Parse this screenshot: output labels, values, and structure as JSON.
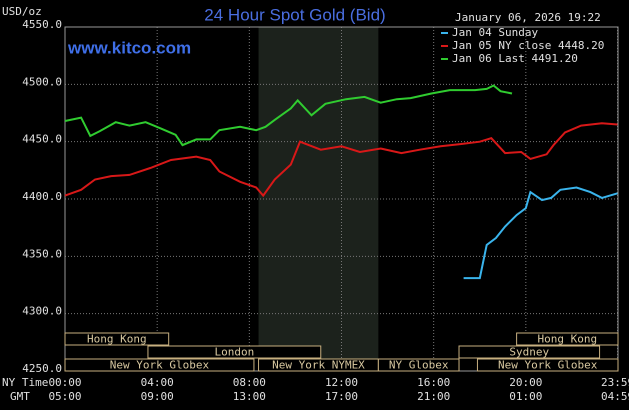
{
  "chart_data": {
    "type": "line",
    "title": "24 Hour Spot Gold (Bid)",
    "unit_label": "USD/oz",
    "timestamp": "January 06, 2026 19:22",
    "site": "www.kitco.com",
    "x_row_labels": [
      "NY Time",
      "GMT"
    ],
    "xlim": [
      0,
      24
    ],
    "ylim": [
      4250,
      4550
    ],
    "xticks": [
      {
        "value": 0,
        "label": "00:00"
      },
      {
        "value": 4,
        "label": "04:00"
      },
      {
        "value": 8,
        "label": "08:00"
      },
      {
        "value": 12,
        "label": "12:00"
      },
      {
        "value": 16,
        "label": "16:00"
      },
      {
        "value": 20,
        "label": "20:00"
      },
      {
        "value": 23.98,
        "label": "23:59"
      }
    ],
    "gmt_tick_labels": [
      "05:00",
      "09:00",
      "13:00",
      "17:00",
      "21:00",
      "01:00",
      "04:59"
    ],
    "yticks": [
      {
        "value": 4250,
        "label": "4250.0"
      },
      {
        "value": 4300,
        "label": "4300.0"
      },
      {
        "value": 4350,
        "label": "4350.0"
      },
      {
        "value": 4400,
        "label": "4400.0"
      },
      {
        "value": 4450,
        "label": "4450.0"
      },
      {
        "value": 4500,
        "label": "4500.0"
      },
      {
        "value": 4550,
        "label": "4550.0"
      }
    ],
    "grid": true,
    "series": [
      {
        "name": "Jan 04 Sunday",
        "color": "#3ab4ec",
        "x": [
          17.3,
          18.0,
          18.3,
          18.7,
          19.1,
          19.6,
          20.0,
          20.2,
          20.7,
          21.1,
          21.5,
          22.2,
          22.8,
          23.3,
          23.98
        ],
        "values": [
          4331,
          4331,
          4360,
          4366,
          4376,
          4386,
          4392,
          4406,
          4399,
          4401,
          4408,
          4410,
          4406,
          4401,
          4405
        ]
      },
      {
        "name": "Jan 05 NY close 4448.20",
        "color": "#d81818",
        "x": [
          0,
          0.7,
          1.3,
          2.0,
          2.8,
          3.7,
          4.6,
          5.7,
          6.3,
          6.7,
          7.6,
          8.3,
          8.6,
          9.1,
          9.8,
          10.2,
          11.1,
          12.0,
          12.8,
          13.7,
          14.6,
          15.4,
          16.3,
          17.2,
          18.0,
          18.5,
          19.1,
          19.8,
          20.2,
          20.9,
          21.2,
          21.7,
          22.4,
          23.3,
          23.98
        ],
        "values": [
          4403,
          4408,
          4417,
          4420,
          4421,
          4427,
          4434,
          4437,
          4434,
          4424,
          4415,
          4410,
          4403,
          4417,
          4430,
          4450,
          4443,
          4446,
          4441,
          4444,
          4440,
          4443,
          4446,
          4448,
          4450,
          4453,
          4440,
          4441,
          4435,
          4439,
          4447,
          4458,
          4464,
          4466,
          4465
        ]
      },
      {
        "name": "Jan 06 Last 4491.20",
        "color": "#30cc30",
        "x": [
          0,
          0.7,
          1.1,
          1.5,
          2.2,
          2.8,
          3.5,
          4.1,
          4.8,
          5.1,
          5.7,
          6.3,
          6.7,
          7.6,
          8.3,
          8.7,
          9.1,
          9.8,
          10.1,
          10.7,
          11.3,
          12.2,
          13.0,
          13.7,
          14.4,
          15.0,
          15.9,
          16.7,
          17.8,
          18.3,
          18.6,
          18.9,
          19.4
        ],
        "values": [
          4468,
          4471,
          4455,
          4459,
          4467,
          4464,
          4467,
          4462,
          4456,
          4447,
          4452,
          4452,
          4460,
          4463,
          4460,
          4463,
          4469,
          4479,
          4486,
          4473,
          4483,
          4487,
          4489,
          4484,
          4487,
          4488,
          4492,
          4495,
          4495,
          4496,
          4499,
          4494,
          4492
        ]
      }
    ],
    "sessions": [
      [
        {
          "label": "Hong Kong",
          "start": 0,
          "end": 4.5
        },
        {
          "label": "Hong Kong",
          "start": 19.6,
          "end": 24
        }
      ],
      [
        {
          "label": "London",
          "start": 3.6,
          "end": 11.1
        },
        {
          "label": "Sydney",
          "start": 17.1,
          "end": 23.2
        }
      ],
      [
        {
          "label": "New York Globex",
          "start": 0,
          "end": 8.2
        },
        {
          "label": "New York NYMEX",
          "start": 8.4,
          "end": 13.6
        },
        {
          "label": "NY Globex",
          "start": 13.6,
          "end": 17.1
        },
        {
          "label": "New York Globex",
          "start": 17.9,
          "end": 24
        }
      ]
    ]
  }
}
